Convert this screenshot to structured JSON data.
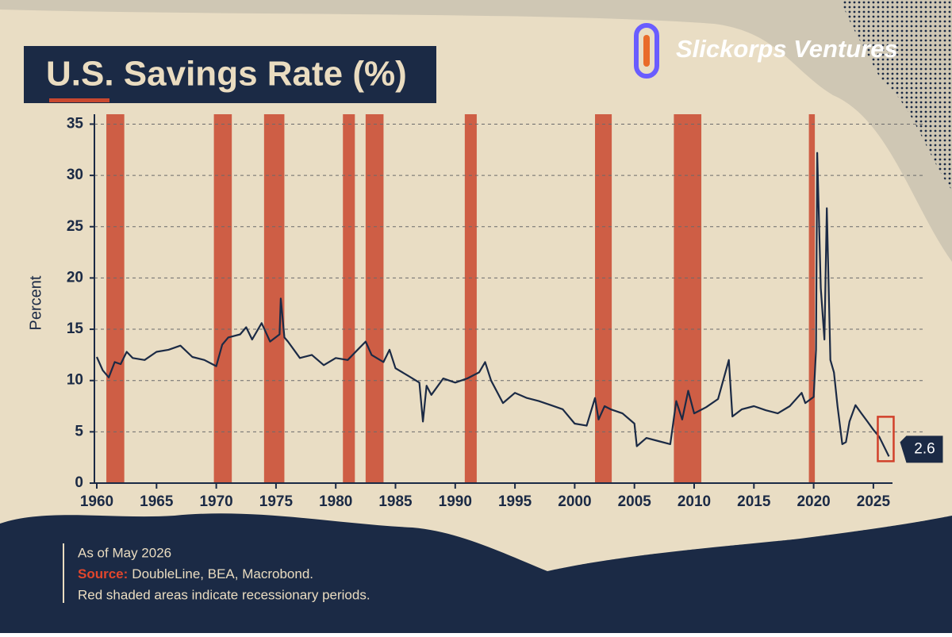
{
  "brand": "Slickorps Ventures",
  "chart_data": {
    "type": "line",
    "title": "U.S. Savings Rate (%)",
    "ylabel": "Percent",
    "xlim": [
      1959.8,
      2026.6
    ],
    "ylim": [
      0,
      35.5
    ],
    "xticks": [
      1960,
      1965,
      1970,
      1975,
      1980,
      1985,
      1990,
      1995,
      2000,
      2005,
      2010,
      2015,
      2020,
      2025
    ],
    "yticks": [
      0,
      5,
      10,
      15,
      20,
      25,
      30,
      35
    ],
    "grid": true,
    "recession_color": "#c9482f",
    "recessions": [
      [
        1960.8,
        1962.3
      ],
      [
        1969.8,
        1971.3
      ],
      [
        1974.0,
        1975.7
      ],
      [
        1980.6,
        1981.6
      ],
      [
        1982.5,
        1984.0
      ],
      [
        1990.8,
        1991.8
      ],
      [
        2001.7,
        2003.1
      ],
      [
        2008.3,
        2010.6
      ],
      [
        2019.6,
        2020.1
      ]
    ],
    "series": [
      {
        "name": "Savings rate",
        "color": "#1b2a45",
        "x": [
          1960,
          1960.5,
          1961,
          1961.5,
          1962,
          1962.5,
          1963,
          1964,
          1965,
          1966,
          1967,
          1968,
          1969,
          1970,
          1970.5,
          1971,
          1972,
          1972.5,
          1973,
          1973.8,
          1974.5,
          1975.3,
          1975.4,
          1975.7,
          1976,
          1977,
          1978,
          1979,
          1980,
          1981,
          1982,
          1982.5,
          1983,
          1984,
          1984.5,
          1985,
          1986,
          1987,
          1987.3,
          1987.6,
          1988,
          1989,
          1990,
          1991,
          1992,
          1992.5,
          1993,
          1994,
          1995,
          1996,
          1997,
          1998,
          1999,
          2000,
          2001,
          2001.7,
          2002,
          2002.5,
          2003,
          2004,
          2005,
          2005.2,
          2006,
          2007,
          2008,
          2008.5,
          2009,
          2009.5,
          2010,
          2011,
          2012,
          2012.9,
          2013.2,
          2014,
          2015,
          2016,
          2017,
          2018,
          2019,
          2019.3,
          2020,
          2020.2,
          2020.3,
          2020.6,
          2020.9,
          2021.1,
          2021.4,
          2021.7,
          2022,
          2022.4,
          2022.7,
          2023,
          2023.5,
          2024,
          2024.5,
          2025,
          2025.5,
          2026.3
        ],
        "values": [
          12.3,
          11.0,
          10.3,
          11.8,
          11.6,
          12.8,
          12.2,
          12.0,
          12.8,
          13.0,
          13.4,
          12.3,
          12.0,
          11.4,
          13.5,
          14.2,
          14.5,
          15.2,
          14.0,
          15.6,
          13.8,
          14.5,
          18.0,
          14.2,
          13.8,
          12.2,
          12.5,
          11.5,
          12.2,
          12.0,
          13.2,
          13.8,
          12.5,
          11.8,
          13.0,
          11.2,
          10.5,
          9.8,
          6.0,
          9.5,
          8.6,
          10.2,
          9.8,
          10.2,
          10.8,
          11.8,
          10.0,
          7.8,
          8.8,
          8.3,
          8.0,
          7.6,
          7.2,
          5.8,
          5.6,
          8.3,
          6.2,
          7.5,
          7.2,
          6.8,
          5.8,
          3.6,
          4.4,
          4.1,
          3.8,
          8.0,
          6.2,
          9.0,
          6.8,
          7.4,
          8.2,
          12.0,
          6.5,
          7.2,
          7.5,
          7.1,
          6.8,
          7.5,
          8.8,
          7.8,
          8.4,
          13.0,
          32.2,
          19.0,
          14.0,
          26.8,
          12.0,
          10.8,
          7.5,
          3.8,
          4.0,
          6.0,
          7.6,
          6.8,
          6.0,
          5.2,
          4.5,
          2.6
        ]
      }
    ]
  },
  "notes": {
    "as_of": "As of May 2026",
    "source_label": "Source:",
    "source": "DoubleLine, BEA, Macrobond.",
    "recession_note": "Red shaded areas indicate recessionary periods."
  }
}
